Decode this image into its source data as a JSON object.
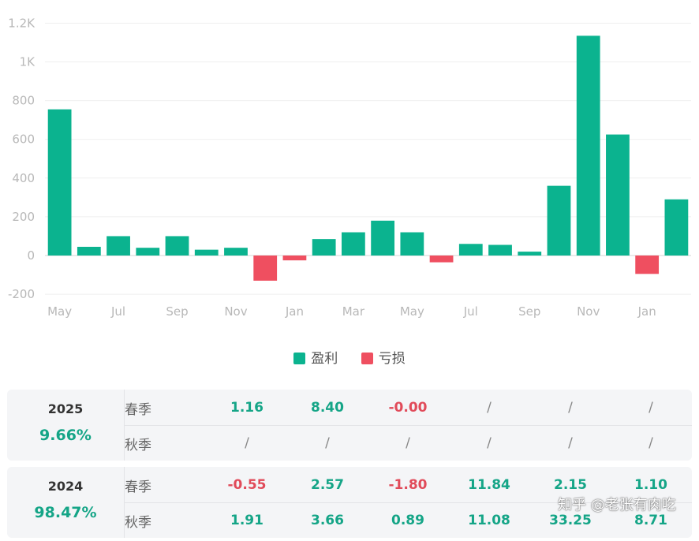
{
  "chart_data": {
    "type": "bar",
    "categories": [
      "May",
      "Jun",
      "Jul",
      "Aug",
      "Sep",
      "Oct",
      "Nov",
      "Dec",
      "Jan",
      "Feb",
      "Mar",
      "Apr",
      "May",
      "Jun",
      "Jul",
      "Aug",
      "Sep",
      "Oct",
      "Nov",
      "Dec",
      "Jan",
      "Feb"
    ],
    "x_tick_labels": [
      "May",
      "Jul",
      "Sep",
      "Nov",
      "Jan",
      "Mar",
      "May",
      "Jul",
      "Sep",
      "Nov",
      "Jan"
    ],
    "values": [
      755,
      45,
      100,
      40,
      100,
      30,
      40,
      -130,
      -25,
      85,
      120,
      180,
      120,
      -35,
      60,
      55,
      20,
      360,
      1135,
      625,
      -95,
      290
    ],
    "yticks": [
      "1.2K",
      "1K",
      "800",
      "600",
      "400",
      "200",
      "0",
      "-200"
    ],
    "ylim": [
      -200,
      1200
    ],
    "colors": {
      "profit": "#0bb38f",
      "loss": "#ef4f60"
    },
    "legend": [
      {
        "name": "盈利",
        "color": "#0bb38f"
      },
      {
        "name": "亏损",
        "color": "#ef4f60"
      }
    ],
    "title": "",
    "xlabel": "",
    "ylabel": ""
  },
  "table": [
    {
      "year": "2025",
      "percent": "9.66%",
      "rows": [
        {
          "label": "春季",
          "values": [
            "1.16",
            "8.40",
            "-0.00",
            "/",
            "/",
            "/"
          ]
        },
        {
          "label": "秋季",
          "values": [
            "/",
            "/",
            "/",
            "/",
            "/",
            "/"
          ]
        }
      ]
    },
    {
      "year": "2024",
      "percent": "98.47%",
      "rows": [
        {
          "label": "春季",
          "values": [
            "-0.55",
            "2.57",
            "-1.80",
            "11.84",
            "2.15",
            "1.10"
          ]
        },
        {
          "label": "秋季",
          "values": [
            "1.91",
            "3.66",
            "0.89",
            "11.08",
            "33.25",
            "8.71"
          ]
        }
      ]
    }
  ],
  "watermark": "知乎 @老张有肉吃"
}
